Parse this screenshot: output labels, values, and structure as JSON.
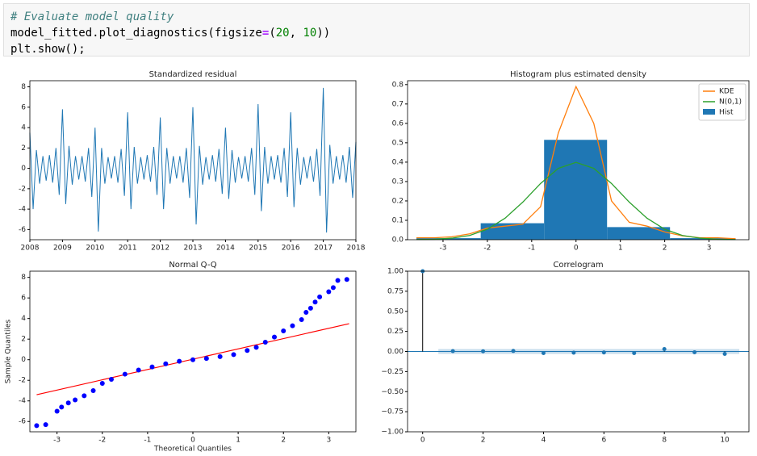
{
  "code": {
    "lines": [
      "# Evaluate model quality",
      [
        "model_fitted.plot_diagnostics(figsize",
        "=",
        "(",
        "20",
        ", ",
        "10",
        "))"
      ],
      "plt.show();"
    ]
  },
  "chart_data": [
    {
      "type": "line",
      "title": "Standardized residual",
      "color": "#1f77b4",
      "x": [
        2008,
        2008.1,
        2008.2,
        2008.3,
        2008.4,
        2008.5,
        2008.6,
        2008.7,
        2008.8,
        2008.9,
        2009,
        2009.1,
        2009.2,
        2009.3,
        2009.4,
        2009.5,
        2009.6,
        2009.7,
        2009.8,
        2009.9,
        2010,
        2010.1,
        2010.2,
        2010.3,
        2010.4,
        2010.5,
        2010.6,
        2010.7,
        2010.8,
        2010.9,
        2011,
        2011.1,
        2011.2,
        2011.3,
        2011.4,
        2011.5,
        2011.6,
        2011.7,
        2011.8,
        2011.9,
        2012,
        2012.1,
        2012.2,
        2012.3,
        2012.4,
        2012.5,
        2012.6,
        2012.7,
        2012.8,
        2012.9,
        2013,
        2013.1,
        2013.2,
        2013.3,
        2013.4,
        2013.5,
        2013.6,
        2013.7,
        2013.8,
        2013.9,
        2014,
        2014.1,
        2014.2,
        2014.3,
        2014.4,
        2014.5,
        2014.6,
        2014.7,
        2014.8,
        2014.9,
        2015,
        2015.1,
        2015.2,
        2015.3,
        2015.4,
        2015.5,
        2015.6,
        2015.7,
        2015.8,
        2015.9,
        2016,
        2016.1,
        2016.2,
        2016.3,
        2016.4,
        2016.5,
        2016.6,
        2016.7,
        2016.8,
        2016.9,
        2017,
        2017.1,
        2017.2,
        2017.3,
        2017.4,
        2017.5,
        2017.6,
        2017.7,
        2017.8,
        2017.9,
        2018
      ],
      "values": [
        3.5,
        -4.0,
        1.8,
        -1.5,
        1.2,
        -1.2,
        1.3,
        -1.4,
        2.0,
        -2.6,
        5.8,
        -3.5,
        2.2,
        -1.6,
        1.2,
        -1.1,
        1.2,
        -1.3,
        2.0,
        -2.8,
        4.0,
        -6.2,
        2.0,
        -1.5,
        1.1,
        -1.0,
        1.2,
        -1.4,
        1.9,
        -2.7,
        5.5,
        -4.0,
        2.1,
        -1.5,
        1.1,
        -1.1,
        1.3,
        -1.3,
        2.1,
        -2.6,
        5.0,
        -4.0,
        2.0,
        -1.5,
        1.2,
        -1.0,
        1.2,
        -1.4,
        2.0,
        -2.9,
        6.0,
        -5.5,
        2.2,
        -1.6,
        1.1,
        -1.1,
        1.3,
        -1.3,
        1.9,
        -2.5,
        4.0,
        -3.0,
        1.8,
        -1.4,
        1.1,
        -1.0,
        1.2,
        -1.3,
        2.0,
        -2.6,
        6.3,
        -4.2,
        2.1,
        -1.5,
        1.2,
        -1.1,
        1.3,
        -1.4,
        2.0,
        -2.8,
        5.5,
        -3.8,
        2.0,
        -1.6,
        1.1,
        -1.0,
        1.2,
        -1.3,
        1.9,
        -2.7,
        7.9,
        -6.3,
        2.3,
        -1.5,
        1.2,
        -1.1,
        1.3,
        -1.4,
        2.1,
        -2.9,
        2.6
      ],
      "xlim": [
        2008,
        2018
      ],
      "xticks": [
        2008,
        2009,
        2010,
        2011,
        2012,
        2013,
        2014,
        2015,
        2016,
        2017,
        2018
      ],
      "ylim": [
        -7,
        8.6
      ],
      "yticks": [
        -6,
        -4,
        -2,
        0,
        2,
        4,
        6,
        8
      ]
    },
    {
      "type": "histogram",
      "title": "Histogram plus estimated density",
      "hist": {
        "name": "Hist",
        "color": "#1f77b4",
        "bins": [
          -3.6,
          -2.15,
          -0.72,
          0.7,
          2.12,
          3.55
        ],
        "counts": [
          0.008,
          0.085,
          0.515,
          0.065,
          0.008
        ]
      },
      "x": [
        -3.6,
        -3.2,
        -2.8,
        -2.4,
        -2.0,
        -1.6,
        -1.2,
        -0.8,
        -0.4,
        0,
        0.4,
        0.8,
        1.2,
        1.6,
        2.0,
        2.4,
        2.8,
        3.2,
        3.6
      ],
      "series": [
        {
          "name": "KDE",
          "color": "#ff7f0e",
          "values": [
            0.01,
            0.01,
            0.015,
            0.03,
            0.06,
            0.07,
            0.08,
            0.17,
            0.55,
            0.79,
            0.6,
            0.2,
            0.09,
            0.07,
            0.04,
            0.02,
            0.01,
            0.01,
            0.005
          ]
        },
        {
          "name": "N(0,1)",
          "color": "#2ca02c",
          "values": [
            0.001,
            0.002,
            0.008,
            0.022,
            0.054,
            0.111,
            0.194,
            0.29,
            0.368,
            0.399,
            0.368,
            0.29,
            0.194,
            0.111,
            0.054,
            0.022,
            0.008,
            0.002,
            0.001
          ]
        }
      ],
      "xlim": [
        -3.8,
        3.9
      ],
      "xticks": [
        -3,
        -2,
        -1,
        0,
        1,
        2,
        3
      ],
      "ylim": [
        0,
        0.82
      ],
      "yticks": [
        {
          "value": 0,
          "label": "0.0"
        },
        {
          "value": 0.1,
          "label": "0.1"
        },
        {
          "value": 0.2,
          "label": "0.2"
        },
        {
          "value": 0.3,
          "label": "0.3"
        },
        {
          "value": 0.4,
          "label": "0.4"
        },
        {
          "value": 0.5,
          "label": "0.5"
        },
        {
          "value": 0.6,
          "label": "0.6"
        },
        {
          "value": 0.7,
          "label": "0.7"
        },
        {
          "value": 0.8,
          "label": "0.8"
        }
      ],
      "legend": "upper right"
    },
    {
      "type": "scatter",
      "title": "Normal Q-Q",
      "xlabel": "Theoretical Quantiles",
      "ylabel": "Sample Quantiles",
      "color": "#0000ff",
      "x": [
        -3.45,
        -3.25,
        -3.0,
        -2.9,
        -2.75,
        -2.6,
        -2.4,
        -2.2,
        -2.0,
        -1.8,
        -1.5,
        -1.2,
        -0.9,
        -0.6,
        -0.3,
        0,
        0.3,
        0.6,
        0.9,
        1.2,
        1.4,
        1.6,
        1.8,
        2.0,
        2.2,
        2.4,
        2.5,
        2.6,
        2.7,
        2.8,
        3.0,
        3.1,
        3.2,
        3.4
      ],
      "values": [
        -6.4,
        -6.3,
        -5.0,
        -4.6,
        -4.2,
        -3.9,
        -3.5,
        -3.0,
        -2.3,
        -1.9,
        -1.4,
        -1.0,
        -0.7,
        -0.4,
        -0.15,
        0,
        0.12,
        0.3,
        0.5,
        0.9,
        1.2,
        1.7,
        2.2,
        2.8,
        3.3,
        3.9,
        4.6,
        5.0,
        5.6,
        6.1,
        6.6,
        7.0,
        7.7,
        7.8
      ],
      "reference_line": {
        "color": "#ff0000",
        "x": [
          -3.45,
          3.45
        ],
        "y": [
          -3.4,
          3.5
        ]
      },
      "xlim": [
        -3.6,
        3.6
      ],
      "xticks": [
        -3,
        -2,
        -1,
        0,
        1,
        2,
        3
      ],
      "ylim": [
        -7,
        8.6
      ],
      "yticks": [
        -6,
        -4,
        -2,
        0,
        2,
        4,
        6,
        8
      ]
    },
    {
      "type": "stem",
      "title": "Correlogram",
      "color": "#1f77b4",
      "x": [
        0,
        1,
        2,
        3,
        4,
        5,
        6,
        7,
        8,
        9,
        10
      ],
      "values": [
        1,
        0.005,
        0.003,
        0.007,
        -0.02,
        -0.015,
        -0.012,
        -0.02,
        0.03,
        -0.01,
        -0.03
      ],
      "confidence_band": 0.03,
      "xlim": [
        -0.5,
        10.8
      ],
      "xticks": [
        0,
        2,
        4,
        6,
        8,
        10
      ],
      "ylim": [
        -1,
        1
      ],
      "yticks": [
        {
          "value": -1,
          "label": "−1.00"
        },
        {
          "value": -0.75,
          "label": "−0.75"
        },
        {
          "value": -0.5,
          "label": "−0.50"
        },
        {
          "value": -0.25,
          "label": "−0.25"
        },
        {
          "value": 0,
          "label": "0.00"
        },
        {
          "value": 0.25,
          "label": "0.25"
        },
        {
          "value": 0.5,
          "label": "0.50"
        },
        {
          "value": 0.75,
          "label": "0.75"
        },
        {
          "value": 1,
          "label": "1.00"
        }
      ]
    }
  ]
}
